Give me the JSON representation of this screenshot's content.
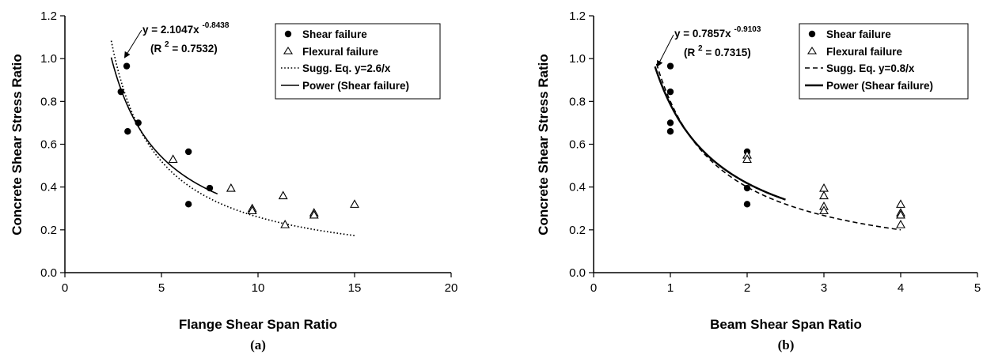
{
  "chart_data": [
    {
      "type": "scatter",
      "caption": "(a)",
      "xlabel": "Flange Shear Span Ratio",
      "ylabel": "Concrete Shear Stress Ratio",
      "xlim": [
        0,
        20
      ],
      "ylim": [
        0,
        1.2
      ],
      "xticks": [
        "0",
        "5",
        "10",
        "15",
        "20"
      ],
      "yticks": [
        "0.0",
        "0.2",
        "0.4",
        "0.6",
        "0.8",
        "1.0",
        "1.2"
      ],
      "grid": false,
      "legend_position": "top-right",
      "equation": {
        "line1_prefix": "y = 2.1047x",
        "line1_exp": "-0.8438",
        "line2_a": "(R",
        "line2_sup": "2",
        "line2_b": " = 0.7532)"
      },
      "series": [
        {
          "name": "Shear failure",
          "kind": "points",
          "marker": "filled-circle",
          "points": [
            [
              2.9,
              0.845
            ],
            [
              3.2,
              0.965
            ],
            [
              3.25,
              0.66
            ],
            [
              3.8,
              0.7
            ],
            [
              6.4,
              0.565
            ],
            [
              6.4,
              0.32
            ],
            [
              7.5,
              0.395
            ]
          ]
        },
        {
          "name": "Flexural failure",
          "kind": "points",
          "marker": "open-triangle",
          "points": [
            [
              5.6,
              0.53
            ],
            [
              8.6,
              0.395
            ],
            [
              9.7,
              0.3
            ],
            [
              9.7,
              0.29
            ],
            [
              11.3,
              0.36
            ],
            [
              11.4,
              0.225
            ],
            [
              12.9,
              0.28
            ],
            [
              12.9,
              0.27
            ],
            [
              15.0,
              0.32
            ]
          ]
        },
        {
          "name": "Sugg. Eq. y=2.6/x",
          "kind": "curve",
          "style": "dotted",
          "coef": 2.6,
          "exp": -1,
          "x_range": [
            2.4,
            15.0
          ]
        },
        {
          "name": "Power (Shear failure)",
          "kind": "curve",
          "style": "solid",
          "coef": 2.1047,
          "exp": -0.8438,
          "x_range": [
            2.4,
            7.9
          ]
        }
      ]
    },
    {
      "type": "scatter",
      "caption": "(b)",
      "xlabel": "Beam Shear Span Ratio",
      "ylabel": "Concrete Shear Stress Ratio",
      "xlim": [
        0,
        5
      ],
      "ylim": [
        0,
        1.2
      ],
      "xticks": [
        "0",
        "1",
        "2",
        "3",
        "4",
        "5"
      ],
      "yticks": [
        "0.0",
        "0.2",
        "0.4",
        "0.6",
        "0.8",
        "1.0",
        "1.2"
      ],
      "grid": false,
      "legend_position": "top-right",
      "equation": {
        "line1_prefix": "y = 0.7857x",
        "line1_exp": "-0.9103",
        "line2_a": "(R",
        "line2_sup": "2",
        "line2_b": " = 0.7315)"
      },
      "series": [
        {
          "name": "Shear failure",
          "kind": "points",
          "marker": "filled-circle",
          "points": [
            [
              1,
              0.965
            ],
            [
              1,
              0.845
            ],
            [
              1,
              0.7
            ],
            [
              1,
              0.66
            ],
            [
              2,
              0.565
            ],
            [
              2,
              0.395
            ],
            [
              2,
              0.32
            ]
          ]
        },
        {
          "name": "Flexural failure",
          "kind": "points",
          "marker": "open-triangle",
          "points": [
            [
              2,
              0.55
            ],
            [
              2,
              0.53
            ],
            [
              3,
              0.395
            ],
            [
              3,
              0.36
            ],
            [
              3,
              0.31
            ],
            [
              3,
              0.29
            ],
            [
              4,
              0.32
            ],
            [
              4,
              0.28
            ],
            [
              4,
              0.27
            ],
            [
              4,
              0.225
            ]
          ]
        },
        {
          "name": "Sugg. Eq. y=0.8/x",
          "kind": "curve",
          "style": "dashed",
          "coef": 0.8,
          "exp": -1,
          "x_range": [
            0.82,
            4.0
          ]
        },
        {
          "name": "Power (Shear failure)",
          "kind": "curve",
          "style": "solid",
          "coef": 0.7857,
          "exp": -0.9103,
          "x_range": [
            0.8,
            2.5
          ]
        }
      ]
    }
  ]
}
